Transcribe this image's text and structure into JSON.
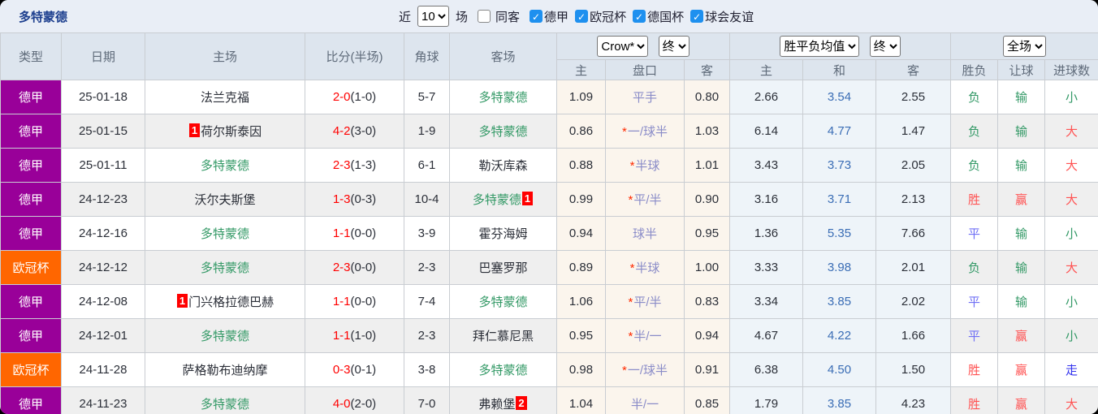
{
  "colors": {
    "bundesliga": "#990099",
    "ucl": "#ff6600",
    "dortmund_green": "#339966",
    "score_red": "#ff0000",
    "topbar_bg": "#e9eef6",
    "header_bg": "#dde5ee",
    "odds_bg": "#fbf5ed",
    "avg_bg": "#eef4f9",
    "checkbox_blue": "#1e90ef"
  },
  "topbar": {
    "title": "多特蒙德",
    "recent_label": "近",
    "recent_value": "10",
    "games_label": "场",
    "same_venue": {
      "label": "同客",
      "checked": false
    },
    "leagues": [
      {
        "label": "德甲",
        "checked": true
      },
      {
        "label": "欧冠杯",
        "checked": true
      },
      {
        "label": "德国杯",
        "checked": true
      },
      {
        "label": "球会友谊",
        "checked": true
      }
    ]
  },
  "header": {
    "type": "类型",
    "date": "日期",
    "home": "主场",
    "score": "比分(半场)",
    "corner": "角球",
    "away": "客场",
    "odds_source_select": "Crow*",
    "odds_time_select": "终",
    "avg_select": "胜平负均值",
    "avg_time_select": "终",
    "result_select": "全场",
    "sub": {
      "odds_home": "主",
      "handicap": "盘口",
      "odds_away": "客",
      "avg_home": "主",
      "avg_draw": "和",
      "avg_away": "客",
      "wdl": "胜负",
      "handicap_result": "让球",
      "goals": "进球数"
    }
  },
  "rows": [
    {
      "league": "德甲",
      "league_color": "#990099",
      "date": "25-01-18",
      "home": {
        "name": "法兰克福",
        "dortmund": false,
        "badge": "",
        "badge_pos": ""
      },
      "score": {
        "full": "2-0",
        "half": "(1-0)"
      },
      "corner": "5-7",
      "away": {
        "name": "多特蒙德",
        "dortmund": true,
        "badge": "",
        "badge_pos": ""
      },
      "odds": {
        "home": "1.09",
        "star": false,
        "handicap": "平手",
        "away": "0.80"
      },
      "avg": {
        "home": "2.66",
        "draw": "3.54",
        "away": "2.55"
      },
      "results": {
        "wdl": {
          "text": "负",
          "color": "green"
        },
        "handicap": {
          "text": "输",
          "color": "green"
        },
        "goals": {
          "text": "小",
          "color": "green"
        }
      }
    },
    {
      "league": "德甲",
      "league_color": "#990099",
      "date": "25-01-15",
      "home": {
        "name": "荷尔斯泰因",
        "dortmund": false,
        "badge": "1",
        "badge_pos": "before"
      },
      "score": {
        "full": "4-2",
        "half": "(3-0)"
      },
      "corner": "1-9",
      "away": {
        "name": "多特蒙德",
        "dortmund": true,
        "badge": "",
        "badge_pos": ""
      },
      "odds": {
        "home": "0.86",
        "star": true,
        "handicap": "一/球半",
        "away": "1.03"
      },
      "avg": {
        "home": "6.14",
        "draw": "4.77",
        "away": "1.47"
      },
      "results": {
        "wdl": {
          "text": "负",
          "color": "green"
        },
        "handicap": {
          "text": "输",
          "color": "green"
        },
        "goals": {
          "text": "大",
          "color": "red"
        }
      }
    },
    {
      "league": "德甲",
      "league_color": "#990099",
      "date": "25-01-11",
      "home": {
        "name": "多特蒙德",
        "dortmund": true,
        "badge": "",
        "badge_pos": ""
      },
      "score": {
        "full": "2-3",
        "half": "(1-3)"
      },
      "corner": "6-1",
      "away": {
        "name": "勒沃库森",
        "dortmund": false,
        "badge": "",
        "badge_pos": ""
      },
      "odds": {
        "home": "0.88",
        "star": true,
        "handicap": "半球",
        "away": "1.01"
      },
      "avg": {
        "home": "3.43",
        "draw": "3.73",
        "away": "2.05"
      },
      "results": {
        "wdl": {
          "text": "负",
          "color": "green"
        },
        "handicap": {
          "text": "输",
          "color": "green"
        },
        "goals": {
          "text": "大",
          "color": "red"
        }
      }
    },
    {
      "league": "德甲",
      "league_color": "#990099",
      "date": "24-12-23",
      "home": {
        "name": "沃尔夫斯堡",
        "dortmund": false,
        "badge": "",
        "badge_pos": ""
      },
      "score": {
        "full": "1-3",
        "half": "(0-3)"
      },
      "corner": "10-4",
      "away": {
        "name": "多特蒙德",
        "dortmund": true,
        "badge": "1",
        "badge_pos": "after"
      },
      "odds": {
        "home": "0.99",
        "star": true,
        "handicap": "平/半",
        "away": "0.90"
      },
      "avg": {
        "home": "3.16",
        "draw": "3.71",
        "away": "2.13"
      },
      "results": {
        "wdl": {
          "text": "胜",
          "color": "red"
        },
        "handicap": {
          "text": "赢",
          "color": "red"
        },
        "goals": {
          "text": "大",
          "color": "red"
        }
      }
    },
    {
      "league": "德甲",
      "league_color": "#990099",
      "date": "24-12-16",
      "home": {
        "name": "多特蒙德",
        "dortmund": true,
        "badge": "",
        "badge_pos": ""
      },
      "score": {
        "full": "1-1",
        "half": "(0-0)"
      },
      "corner": "3-9",
      "away": {
        "name": "霍芬海姆",
        "dortmund": false,
        "badge": "",
        "badge_pos": ""
      },
      "odds": {
        "home": "0.94",
        "star": false,
        "handicap": "球半",
        "away": "0.95"
      },
      "avg": {
        "home": "1.36",
        "draw": "5.35",
        "away": "7.66"
      },
      "results": {
        "wdl": {
          "text": "平",
          "color": "blue"
        },
        "handicap": {
          "text": "输",
          "color": "green"
        },
        "goals": {
          "text": "小",
          "color": "green"
        }
      }
    },
    {
      "league": "欧冠杯",
      "league_color": "#ff6600",
      "date": "24-12-12",
      "home": {
        "name": "多特蒙德",
        "dortmund": true,
        "badge": "",
        "badge_pos": ""
      },
      "score": {
        "full": "2-3",
        "half": "(0-0)"
      },
      "corner": "2-3",
      "away": {
        "name": "巴塞罗那",
        "dortmund": false,
        "badge": "",
        "badge_pos": ""
      },
      "odds": {
        "home": "0.89",
        "star": true,
        "handicap": "半球",
        "away": "1.00"
      },
      "avg": {
        "home": "3.33",
        "draw": "3.98",
        "away": "2.01"
      },
      "results": {
        "wdl": {
          "text": "负",
          "color": "green"
        },
        "handicap": {
          "text": "输",
          "color": "green"
        },
        "goals": {
          "text": "大",
          "color": "red"
        }
      }
    },
    {
      "league": "德甲",
      "league_color": "#990099",
      "date": "24-12-08",
      "home": {
        "name": "门兴格拉德巴赫",
        "dortmund": false,
        "badge": "1",
        "badge_pos": "before"
      },
      "score": {
        "full": "1-1",
        "half": "(0-0)"
      },
      "corner": "7-4",
      "away": {
        "name": "多特蒙德",
        "dortmund": true,
        "badge": "",
        "badge_pos": ""
      },
      "odds": {
        "home": "1.06",
        "star": true,
        "handicap": "平/半",
        "away": "0.83"
      },
      "avg": {
        "home": "3.34",
        "draw": "3.85",
        "away": "2.02"
      },
      "results": {
        "wdl": {
          "text": "平",
          "color": "blue"
        },
        "handicap": {
          "text": "输",
          "color": "green"
        },
        "goals": {
          "text": "小",
          "color": "green"
        }
      }
    },
    {
      "league": "德甲",
      "league_color": "#990099",
      "date": "24-12-01",
      "home": {
        "name": "多特蒙德",
        "dortmund": true,
        "badge": "",
        "badge_pos": ""
      },
      "score": {
        "full": "1-1",
        "half": "(1-0)"
      },
      "corner": "2-3",
      "away": {
        "name": "拜仁慕尼黑",
        "dortmund": false,
        "badge": "",
        "badge_pos": ""
      },
      "odds": {
        "home": "0.95",
        "star": true,
        "handicap": "半/一",
        "away": "0.94"
      },
      "avg": {
        "home": "4.67",
        "draw": "4.22",
        "away": "1.66"
      },
      "results": {
        "wdl": {
          "text": "平",
          "color": "blue"
        },
        "handicap": {
          "text": "赢",
          "color": "red"
        },
        "goals": {
          "text": "小",
          "color": "green"
        }
      }
    },
    {
      "league": "欧冠杯",
      "league_color": "#ff6600",
      "date": "24-11-28",
      "home": {
        "name": "萨格勒布迪纳摩",
        "dortmund": false,
        "badge": "",
        "badge_pos": ""
      },
      "score": {
        "full": "0-3",
        "half": "(0-1)"
      },
      "corner": "3-8",
      "away": {
        "name": "多特蒙德",
        "dortmund": true,
        "badge": "",
        "badge_pos": ""
      },
      "odds": {
        "home": "0.98",
        "star": true,
        "handicap": "一/球半",
        "away": "0.91"
      },
      "avg": {
        "home": "6.38",
        "draw": "4.50",
        "away": "1.50"
      },
      "results": {
        "wdl": {
          "text": "胜",
          "color": "red"
        },
        "handicap": {
          "text": "赢",
          "color": "red"
        },
        "goals": {
          "text": "走",
          "color": "blue2"
        }
      }
    },
    {
      "league": "德甲",
      "league_color": "#990099",
      "date": "24-11-23",
      "home": {
        "name": "多特蒙德",
        "dortmund": true,
        "badge": "",
        "badge_pos": ""
      },
      "score": {
        "full": "4-0",
        "half": "(2-0)"
      },
      "corner": "7-0",
      "away": {
        "name": "弗赖堡",
        "dortmund": false,
        "badge": "2",
        "badge_pos": "after"
      },
      "odds": {
        "home": "1.04",
        "star": false,
        "handicap": "半/一",
        "away": "0.85"
      },
      "avg": {
        "home": "1.79",
        "draw": "3.85",
        "away": "4.23"
      },
      "results": {
        "wdl": {
          "text": "胜",
          "color": "red"
        },
        "handicap": {
          "text": "赢",
          "color": "red"
        },
        "goals": {
          "text": "大",
          "color": "red"
        }
      }
    }
  ]
}
